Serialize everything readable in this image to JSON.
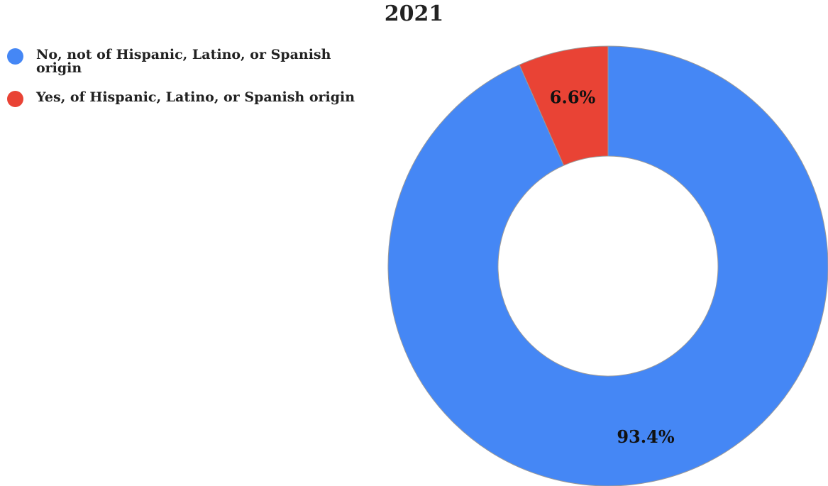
{
  "chart_data": {
    "type": "pie",
    "title": "2021",
    "donut": true,
    "legend_position": "top-left",
    "slices": [
      {
        "label": "No, not of Hispanic, Latino, or Spanish origin",
        "value": 93.4,
        "display": "93.4%",
        "color": "#4587f5"
      },
      {
        "label": "Yes, of Hispanic, Latino, or Spanish origin",
        "value": 6.6,
        "display": "6.6%",
        "color": "#e94335"
      }
    ]
  }
}
